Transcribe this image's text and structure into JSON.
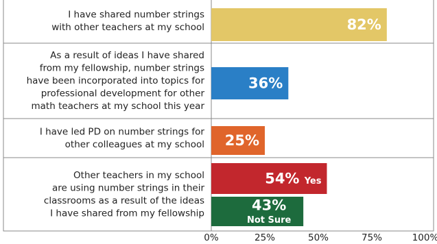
{
  "chart_data": {
    "type": "bar",
    "categories": [
      {
        "label": [
          "I have shared number strings",
          "with other teachers at my school"
        ],
        "bars": [
          {
            "value": 82,
            "value_label": "82%",
            "color": "#e3c767"
          }
        ]
      },
      {
        "label": [
          "As a result of ideas I have shared",
          "from my fellowship, number strings",
          "have been incorporated into topics for",
          "professional development for other",
          "math teachers at my school this year"
        ],
        "bars": [
          {
            "value": 36,
            "value_label": "36%",
            "color": "#2a7fc6"
          }
        ]
      },
      {
        "label": [
          "I have led PD on number strings for",
          "other colleagues at my school"
        ],
        "bars": [
          {
            "value": 25,
            "value_label": "25%",
            "color": "#e0652b"
          }
        ]
      },
      {
        "label": [
          "Other teachers in my school",
          "are using number strings in their",
          "classrooms as a result of the ideas",
          "I have shared from my fellowship"
        ],
        "bars": [
          {
            "value": 54,
            "value_label": "54%",
            "note": "Yes",
            "color": "#c2272d"
          },
          {
            "value": 43,
            "value_label": "43%",
            "note": "Not Sure",
            "color": "#1d6b3d"
          }
        ]
      }
    ],
    "xlim": [
      0,
      100
    ],
    "xticks": [
      {
        "value": 0,
        "label": "0%"
      },
      {
        "value": 25,
        "label": "25%"
      },
      {
        "value": 50,
        "label": "50%"
      },
      {
        "value": 75,
        "label": "75%"
      },
      {
        "value": 100,
        "label": "100%"
      }
    ]
  }
}
